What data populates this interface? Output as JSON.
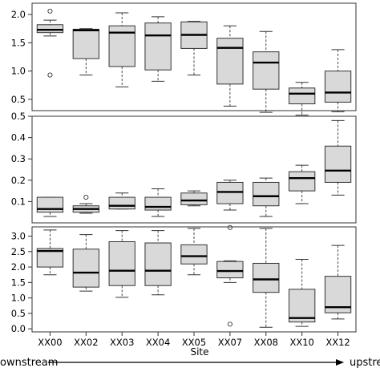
{
  "chart_data": {
    "type": "boxplot",
    "categories": [
      "XX00",
      "XX02",
      "XX03",
      "XX04",
      "XX05",
      "XX07",
      "XX08",
      "XX10",
      "XX12"
    ],
    "xlabel": "Site",
    "direction_left": "ownstream",
    "direction_right": "upstre",
    "colors": {
      "box_fill": "#d9d9d9",
      "stroke": "#333333",
      "median": "#000000"
    },
    "panels": [
      {
        "ylim": [
          0.3,
          2.2
        ],
        "yticks": [
          0.5,
          1.0,
          1.5,
          2.0
        ],
        "ytick_labels": [
          "0.5",
          "1.0",
          "1.5",
          "2.0"
        ],
        "boxes": [
          {
            "min": 1.62,
            "q1": 1.68,
            "median": 1.73,
            "q3": 1.82,
            "max": 1.9,
            "outliers": [
              2.06,
              0.93
            ]
          },
          {
            "min": 0.93,
            "q1": 1.22,
            "median": 1.72,
            "q3": 1.74,
            "max": 1.75,
            "outliers": []
          },
          {
            "min": 0.72,
            "q1": 1.08,
            "median": 1.68,
            "q3": 1.8,
            "max": 2.03,
            "outliers": []
          },
          {
            "min": 0.82,
            "q1": 1.02,
            "median": 1.63,
            "q3": 1.85,
            "max": 1.96,
            "outliers": []
          },
          {
            "min": 0.93,
            "q1": 1.4,
            "median": 1.64,
            "q3": 1.87,
            "max": 1.88,
            "outliers": []
          },
          {
            "min": 0.38,
            "q1": 0.77,
            "median": 1.41,
            "q3": 1.58,
            "max": 1.8,
            "outliers": []
          },
          {
            "min": 0.27,
            "q1": 0.68,
            "median": 1.15,
            "q3": 1.34,
            "max": 1.7,
            "outliers": []
          },
          {
            "min": 0.22,
            "q1": 0.42,
            "median": 0.6,
            "q3": 0.7,
            "max": 0.8,
            "outliers": []
          },
          {
            "min": 0.28,
            "q1": 0.45,
            "median": 0.62,
            "q3": 1.0,
            "max": 1.38,
            "outliers": []
          }
        ]
      },
      {
        "ylim": [
          0.0,
          0.5
        ],
        "yticks": [
          0.1,
          0.2,
          0.3,
          0.4,
          0.5
        ],
        "ytick_labels": [
          "0.1",
          "0.2",
          "0.3",
          "0.4",
          "0.5"
        ],
        "boxes": [
          {
            "min": 0.03,
            "q1": 0.05,
            "median": 0.065,
            "q3": 0.12,
            "max": 0.12,
            "outliers": []
          },
          {
            "min": 0.045,
            "q1": 0.05,
            "median": 0.065,
            "q3": 0.08,
            "max": 0.09,
            "outliers": [
              0.12
            ]
          },
          {
            "min": 0.065,
            "q1": 0.065,
            "median": 0.08,
            "q3": 0.12,
            "max": 0.14,
            "outliers": []
          },
          {
            "min": 0.03,
            "q1": 0.06,
            "median": 0.075,
            "q3": 0.12,
            "max": 0.16,
            "outliers": []
          },
          {
            "min": 0.08,
            "q1": 0.085,
            "median": 0.105,
            "q3": 0.14,
            "max": 0.15,
            "outliers": []
          },
          {
            "min": 0.06,
            "q1": 0.09,
            "median": 0.145,
            "q3": 0.19,
            "max": 0.2,
            "outliers": []
          },
          {
            "min": 0.03,
            "q1": 0.08,
            "median": 0.125,
            "q3": 0.19,
            "max": 0.21,
            "outliers": []
          },
          {
            "min": 0.09,
            "q1": 0.15,
            "median": 0.21,
            "q3": 0.24,
            "max": 0.27,
            "outliers": []
          },
          {
            "min": 0.13,
            "q1": 0.19,
            "median": 0.245,
            "q3": 0.36,
            "max": 0.48,
            "outliers": []
          }
        ]
      },
      {
        "ylim": [
          -0.1,
          3.3
        ],
        "yticks": [
          0.0,
          0.5,
          1.0,
          1.5,
          2.0,
          2.5,
          3.0
        ],
        "ytick_labels": [
          "0.0",
          "0.5",
          "1.0",
          "1.5",
          "2.0",
          "2.5",
          "3.0"
        ],
        "boxes": [
          {
            "min": 1.75,
            "q1": 2.0,
            "median": 2.52,
            "q3": 2.6,
            "max": 3.2,
            "outliers": []
          },
          {
            "min": 1.22,
            "q1": 1.35,
            "median": 1.82,
            "q3": 2.58,
            "max": 3.05,
            "outliers": []
          },
          {
            "min": 1.02,
            "q1": 1.4,
            "median": 1.88,
            "q3": 2.82,
            "max": 3.18,
            "outliers": []
          },
          {
            "min": 1.1,
            "q1": 1.4,
            "median": 1.88,
            "q3": 2.78,
            "max": 3.18,
            "outliers": []
          },
          {
            "min": 1.75,
            "q1": 2.1,
            "median": 2.35,
            "q3": 2.72,
            "max": 3.25,
            "outliers": []
          },
          {
            "min": 1.5,
            "q1": 1.65,
            "median": 1.87,
            "q3": 2.18,
            "max": 2.2,
            "outliers": [
              3.28,
              0.15
            ]
          },
          {
            "min": 0.05,
            "q1": 1.18,
            "median": 1.6,
            "q3": 2.12,
            "max": 3.25,
            "outliers": []
          },
          {
            "min": 0.08,
            "q1": 0.22,
            "median": 0.35,
            "q3": 1.28,
            "max": 2.25,
            "outliers": []
          },
          {
            "min": 0.32,
            "q1": 0.52,
            "median": 0.7,
            "q3": 1.7,
            "max": 2.7,
            "outliers": []
          }
        ]
      }
    ]
  }
}
